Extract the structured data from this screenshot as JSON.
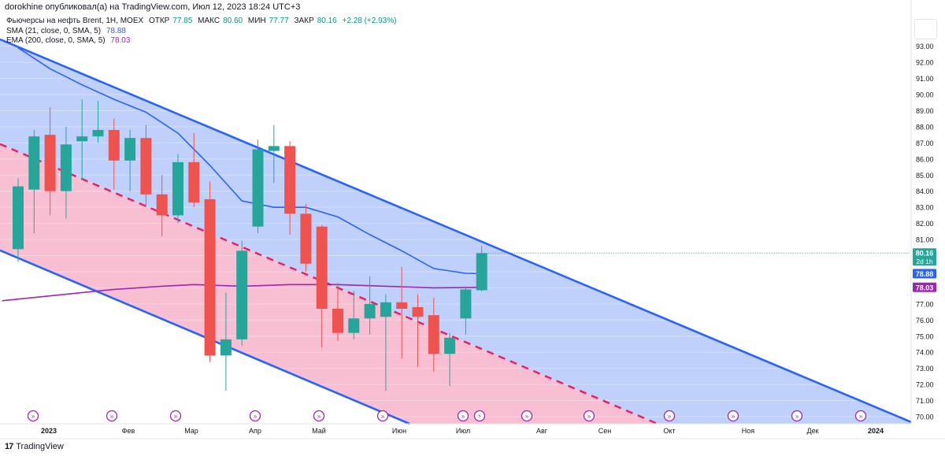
{
  "header": {
    "publisher": "dorokhine опубликовал(а) на TradingView.com, Июл 12, 2023 18:24 UTC+3"
  },
  "legend": {
    "instrument": "Фьючерсы на нефть Brent, 1Н, MOEX",
    "open_label": "ОТКР",
    "open": "77.85",
    "high_label": "МАКС",
    "high": "80.60",
    "low_label": "МИН",
    "low": "77.77",
    "close_label": "ЗАКР",
    "close": "80.16",
    "change": "+2.28 (+2.93%)",
    "sma_label": "SMA (21, close, 0, SMA, 5)",
    "sma_value": "78.88",
    "ema_label": "EMA (200, close, 0, SMA, 5)",
    "ema_value": "78.03"
  },
  "footer": {
    "brand": "TradingView"
  },
  "colors": {
    "up": "#26a69a",
    "down": "#ef5350",
    "sma": "#2962ff",
    "ema": "#9c27b0",
    "channel": "#2962ff",
    "upper_fill": "#bccefb",
    "lower_fill": "#f8bbd0",
    "midline": "#e91e63"
  },
  "chart_data": {
    "type": "candlestick",
    "ylim": [
      69.5,
      94
    ],
    "y_ticks": [
      "70.00",
      "71.00",
      "72.00",
      "73.00",
      "74.00",
      "75.00",
      "76.00",
      "77.00",
      "78.00",
      "79.00",
      "80.00",
      "81.00",
      "82.00",
      "83.00",
      "84.00",
      "85.00",
      "86.00",
      "87.00",
      "88.00",
      "89.00",
      "90.00",
      "91.00",
      "92.00",
      "93.00"
    ],
    "x_labels": [
      "2023",
      "Фев",
      "Мар",
      "Апр",
      "Май",
      "Июн",
      "Июл",
      "Авг",
      "Сен",
      "Окт",
      "Ноя",
      "Дек",
      "2024"
    ],
    "price_badges": [
      {
        "value": "80.16",
        "note": "2d 1h",
        "color": "#26a69a"
      },
      {
        "value": "78.88",
        "color": "#2962ff"
      },
      {
        "value": "78.03",
        "color": "#9c27b0"
      }
    ],
    "candles": [
      {
        "date": "2023-01-02",
        "o": 80.4,
        "h": 84.8,
        "l": 79.6,
        "c": 84.3
      },
      {
        "date": "2023-01-09",
        "o": 84.1,
        "h": 87.8,
        "l": 81.4,
        "c": 87.4
      },
      {
        "date": "2023-01-16",
        "o": 87.5,
        "h": 89.2,
        "l": 82.5,
        "c": 84.0
      },
      {
        "date": "2023-01-23",
        "o": 84.0,
        "h": 88.0,
        "l": 82.3,
        "c": 86.9
      },
      {
        "date": "2023-01-30",
        "o": 87.1,
        "h": 89.7,
        "l": 84.7,
        "c": 87.4
      },
      {
        "date": "2023-02-06",
        "o": 87.4,
        "h": 89.6,
        "l": 87.0,
        "c": 87.8
      },
      {
        "date": "2023-02-13",
        "o": 87.8,
        "h": 88.5,
        "l": 84.1,
        "c": 85.9
      },
      {
        "date": "2023-02-20",
        "o": 85.9,
        "h": 87.8,
        "l": 84.0,
        "c": 87.3
      },
      {
        "date": "2023-02-27",
        "o": 87.3,
        "h": 88.1,
        "l": 83.0,
        "c": 83.8
      },
      {
        "date": "2023-03-06",
        "o": 83.8,
        "h": 85.0,
        "l": 81.2,
        "c": 82.5
      },
      {
        "date": "2023-03-13",
        "o": 82.5,
        "h": 86.3,
        "l": 82.0,
        "c": 85.8
      },
      {
        "date": "2023-03-20",
        "o": 85.8,
        "h": 87.6,
        "l": 83.0,
        "c": 83.3
      },
      {
        "date": "2023-03-27",
        "o": 83.5,
        "h": 84.6,
        "l": 73.4,
        "c": 73.8
      },
      {
        "date": "2023-04-03",
        "o": 73.8,
        "h": 77.7,
        "l": 71.6,
        "c": 74.8
      },
      {
        "date": "2023-04-10",
        "o": 74.8,
        "h": 80.9,
        "l": 74.4,
        "c": 80.3
      },
      {
        "date": "2023-04-17",
        "o": 81.8,
        "h": 87.2,
        "l": 81.4,
        "c": 86.6
      },
      {
        "date": "2023-04-24",
        "o": 86.5,
        "h": 88.1,
        "l": 84.5,
        "c": 86.8
      },
      {
        "date": "2023-05-01",
        "o": 86.8,
        "h": 87.1,
        "l": 81.3,
        "c": 82.6
      },
      {
        "date": "2023-05-08",
        "o": 82.6,
        "h": 83.2,
        "l": 79.0,
        "c": 79.5
      },
      {
        "date": "2023-05-15",
        "o": 81.8,
        "h": 81.9,
        "l": 74.3,
        "c": 76.7
      },
      {
        "date": "2023-05-22",
        "o": 76.7,
        "h": 78.3,
        "l": 74.7,
        "c": 75.2
      },
      {
        "date": "2023-05-29",
        "o": 75.2,
        "h": 77.8,
        "l": 74.8,
        "c": 76.1
      },
      {
        "date": "2023-06-05",
        "o": 76.1,
        "h": 78.7,
        "l": 75.1,
        "c": 77.0
      },
      {
        "date": "2023-06-12",
        "o": 76.2,
        "h": 77.6,
        "l": 71.6,
        "c": 77.1
      },
      {
        "date": "2023-06-19",
        "o": 77.1,
        "h": 79.3,
        "l": 73.6,
        "c": 76.7
      },
      {
        "date": "2023-06-26",
        "o": 76.8,
        "h": 77.6,
        "l": 73.1,
        "c": 76.2
      },
      {
        "date": "2023-07-03",
        "o": 76.3,
        "h": 77.4,
        "l": 72.8,
        "c": 73.9
      },
      {
        "date": "2023-07-10",
        "o": 73.9,
        "h": 75.2,
        "l": 71.9,
        "c": 74.9
      },
      {
        "date": "2023-07-17",
        "o": 76.1,
        "h": 78.1,
        "l": 75.1,
        "c": 77.9
      },
      {
        "date": "2023-07-24",
        "o": 77.85,
        "h": 80.6,
        "l": 77.77,
        "c": 80.16
      }
    ]
  }
}
